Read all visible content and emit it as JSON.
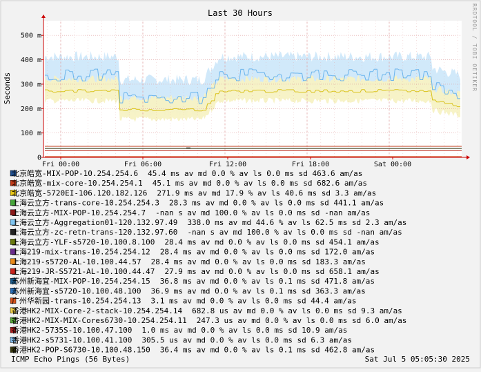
{
  "chart_data": {
    "type": "area",
    "title": "Last 30 Hours",
    "ylabel": "Seconds",
    "side_label": "RRDTOOL / TOBI OETIKER",
    "x_ticks": [
      "Fri 00:00",
      "Fri 06:00",
      "Fri 12:00",
      "Fri 18:00",
      "Sat 00:00"
    ],
    "y_ticks": [
      "0",
      "100 m",
      "200 m",
      "300 m",
      "400 m",
      "500 m"
    ],
    "ylim": [
      0,
      0.56
    ],
    "grid": true,
    "series": [
      {
        "name": "北京皓宽-MIX-POP-10.254.254.6",
        "color": "#1f4f8f",
        "stats": "45.4 ms av md     0.0 % av ls     0.0 ms sd  463.6   am/as",
        "level": 0.0454
      },
      {
        "name": "北京皓宽-mix-core-10.254.254.1",
        "color": "#c23b1a",
        "stats": "45.1 ms av md     0.0 % av ls     0.0 ms sd  682.6   am/as",
        "level": 0.0451
      },
      {
        "name": "北京皓宽-5720EI-106.120.182.126",
        "color": "#e8c516",
        "stats": "271.9 ms av md    17.9 % av ls    40.6 ms sd    3.3   am/as",
        "level": 0.272
      },
      {
        "name": "上海云立方-trans-core-10.254.254.3",
        "color": "#46a53a",
        "stats": "28.3 ms av md     0.0 % av ls     0.0 ms sd  441.1   am/as",
        "level": 0.0283
      },
      {
        "name": "上海云立方-MIX-POP-10.254.254.7",
        "color": "#8b1a1a",
        "stats": "-nan  s av md   100.0 % av ls     0.0 ms sd   -nan   am/as",
        "level": null
      },
      {
        "name": "上海云立方-Aggregation01-120.132.97.49",
        "color": "#7fc4f0",
        "stats": "338.0 ms av md    44.6 % av ls    62.5 ms sd    2.3   am/as",
        "level": 0.338
      },
      {
        "name": "上海云立方-zc-retn-trans-120.132.97.60",
        "color": "#222222",
        "stats": "-nan  s av md   100.0 % av ls     0.0 ms sd   -nan   am/as",
        "level": null
      },
      {
        "name": "上海云立方-YLF-s5720-10.100.8.100",
        "color": "#6a7a10",
        "stats": "28.4 ms av md     0.0 % av ls     0.0 ms sd  454.1   am/as",
        "level": 0.0284
      },
      {
        "name": "上海219-mix-trans-10.254.254.12",
        "color": "#6a2b8c",
        "stats": "28.4 ms av md     0.0 % av ls     0.0 ms sd  172.0   am/as",
        "level": 0.0284
      },
      {
        "name": "上海219-s5720-AL-10.100.44.57",
        "color": "#e88a1a",
        "stats": "28.4 ms av md     0.0 % av ls     0.0 ms sd  183.3   am/as",
        "level": 0.0284
      },
      {
        "name": "上海219-JR-S5721-AL-10.100.44.47",
        "color": "#c8241e",
        "stats": "27.9 ms av md     0.0 % av ls     0.0 ms sd  658.1   am/as",
        "level": 0.0279
      },
      {
        "name": "苏州新海宜-MIX-POP-10.254.254.15",
        "color": "#1a5a8a",
        "stats": "36.8 ms av md     0.0 % av ls     0.1 ms sd  471.8   am/as",
        "level": 0.0368
      },
      {
        "name": "苏州新海宜-s5720-10.100.48.100",
        "color": "#2a6fb8",
        "stats": "36.9 ms av md     0.0 % av ls     0.1 ms sd  363.3   am/as",
        "level": 0.0369
      },
      {
        "name": "广州华新园-trans-10.254.254.13",
        "color": "#d9541e",
        "stats": "3.1 ms av md     0.0 % av ls     0.0 ms sd   44.4   am/as",
        "level": 0.0031
      },
      {
        "name": "香港HK2-MIX-Core-2-stack-10.254.254.14",
        "color": "#f0d04a",
        "stats": "682.8 us av md     0.0 % av ls     0.0 ms sd    9.3   am/as",
        "level": 0.0007
      },
      {
        "name": "香港HK2-MIX-MIX-Cores6730-10.254.254.11",
        "color": "#5aaa3a",
        "stats": "247.3 us av md     0.0 % av ls     0.0 ms sd    6.0   am/as",
        "level": 0.0002
      },
      {
        "name": "香港HK2-5735S-10.100.47.100",
        "color": "#a81e1e",
        "stats": "1.0 ms av md     0.0 % av ls     0.0 ms sd   10.9   am/as",
        "level": 0.001
      },
      {
        "name": "香港HK2-s5731-10.100.41.100",
        "color": "#7fb8e8",
        "stats": "305.5 us av md     0.0 % av ls     0.0 ms sd    6.3   am/as",
        "level": 0.0003
      },
      {
        "name": "香港HK2-POP-S6730-10.100.48.150",
        "color": "#3a3a10",
        "stats": "36.4 ms av md     0.0 % av ls     0.1 ms sd  462.8   am/as",
        "level": 0.0364
      }
    ]
  },
  "footer": {
    "left": "ICMP Echo Pings (56 Bytes)",
    "right": "Sat Jul  5 05:05:30 2025"
  },
  "colors": {
    "band_blue": "#cfe8fa",
    "band_yellow": "#f7f2c4",
    "line_blue": "#6ab4ec",
    "line_yellow": "#d9c21a",
    "grid": "#e0a0a0",
    "axis": "#cc0000"
  }
}
